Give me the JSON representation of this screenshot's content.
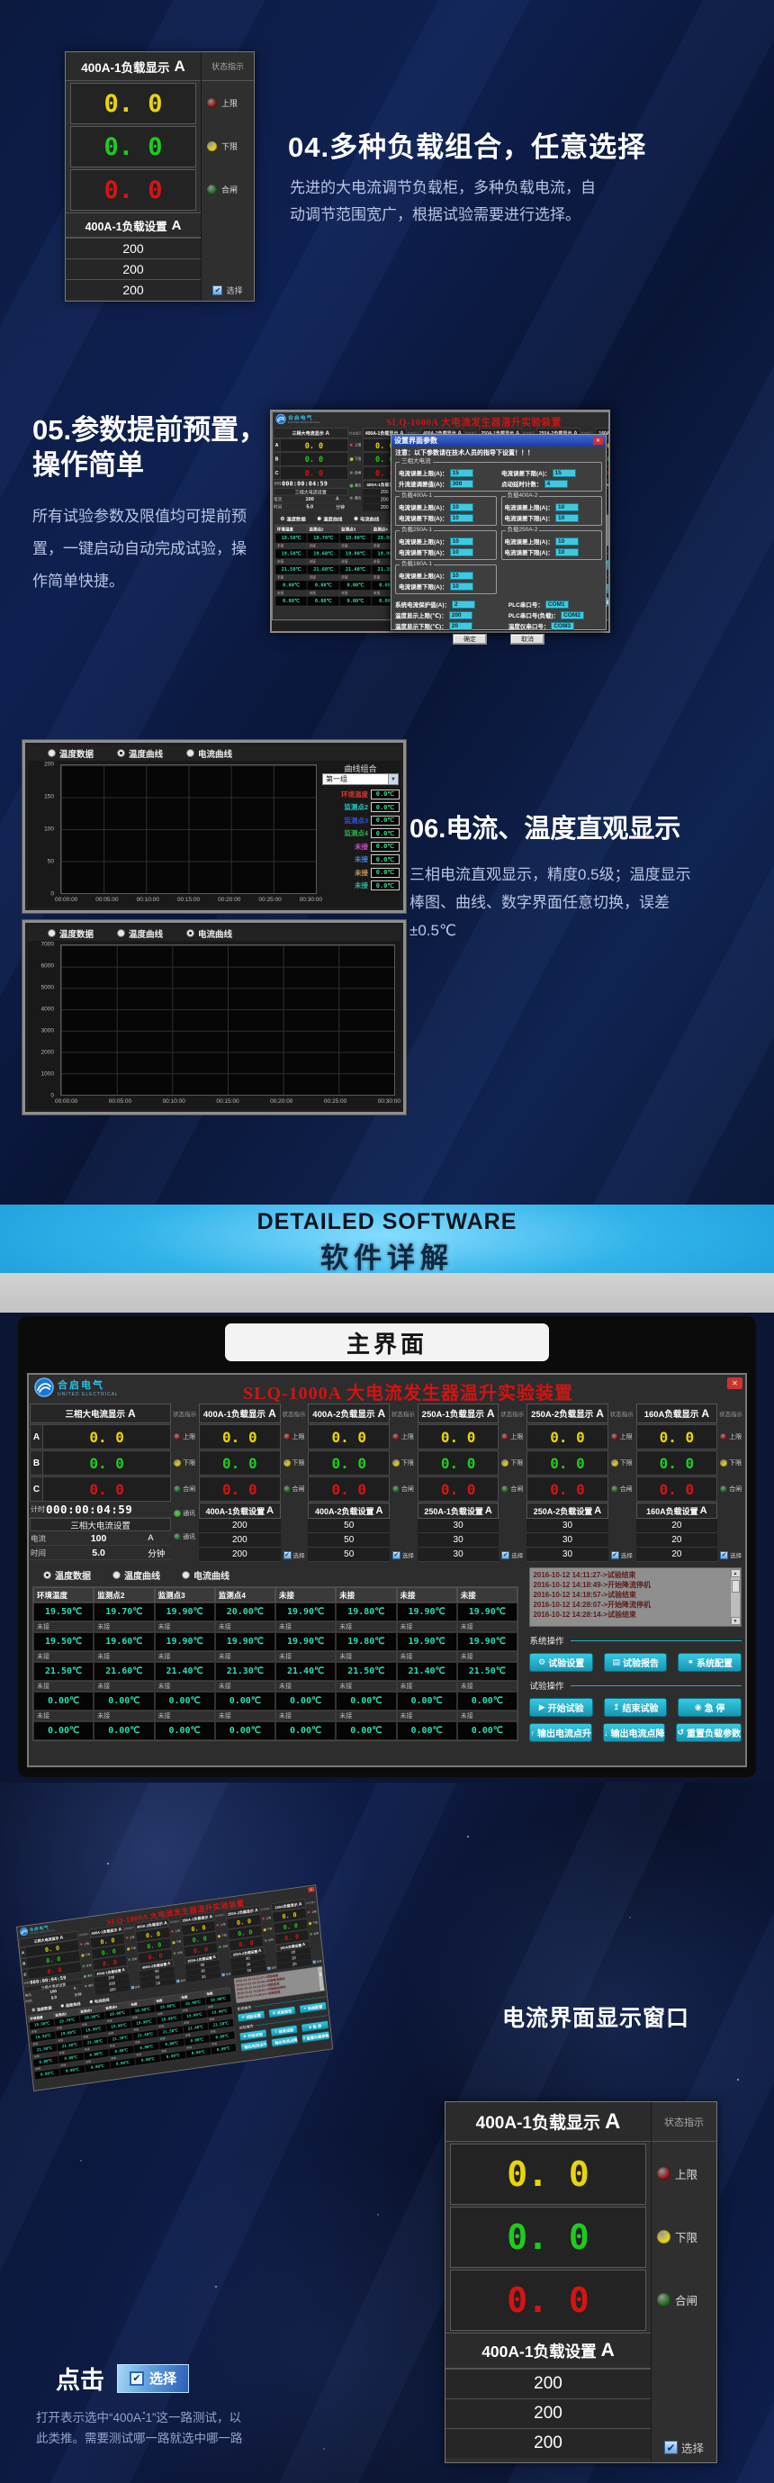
{
  "colors": {
    "phase_colors": [
      "#e8d50a",
      "#1ecb1e",
      "#d41414"
    ],
    "accent_teal": "#1fb0c0",
    "band_blue": "#29abe2",
    "button_cyan": "#24b6cf",
    "title_red": "#cf1414",
    "temp_value": "#2bdcb4"
  },
  "load_panel": {
    "title": "400A-1负载显示",
    "unit": "A",
    "status_title": "状态指示",
    "phases": [
      {
        "value": "0. 0",
        "color": "#e8d50a"
      },
      {
        "value": "0. 0",
        "color": "#1ecb1e"
      },
      {
        "value": "0. 0",
        "color": "#d41414"
      }
    ],
    "indicators": [
      {
        "label": "上限",
        "color": "#8b1212"
      },
      {
        "label": "下限",
        "color": "#f2da12"
      },
      {
        "label": "合闸",
        "color": "#1f6b1f"
      }
    ],
    "settings_title": "400A-1负载设置",
    "settings_unit": "A",
    "settings": [
      "200",
      "200",
      "200"
    ],
    "select_label": "选择"
  },
  "sections": {
    "s04": {
      "heading": "04.多种负载组合，任意选择",
      "body": [
        "先进的大电流调节负载柜，多种负载电流，自",
        "动调节范围宽广，根据试验需要进行选择。"
      ]
    },
    "s05": {
      "heading_l1": "05.参数提前预置，",
      "heading_l2": "操作简单",
      "body": [
        "所有试验参数及限值均可提前预",
        "置，一键启动自动完成试验，操",
        "作简单快捷。"
      ]
    },
    "s06": {
      "heading": "06.电流、温度直观显示",
      "body": [
        "三相电流直观显示，精度0.5级；温度显示",
        "棒图、曲线、数字界面任意切换，误差",
        "±0.5℃"
      ]
    }
  },
  "band": {
    "title_en": "DETAILED SOFTWARE",
    "title_zh": "软件详解"
  },
  "main_section_title": "主界面",
  "main_ui": {
    "logo_text": "合启电气",
    "logo_sub": "UNITED ELECTRICAL",
    "window_title": "SLQ-1000A 大电流发生器温升实验装置",
    "close_glyph": "✕",
    "status_title": "状态指示",
    "select_label": "选择",
    "master": {
      "title": "三相大电流显示",
      "unit": "A",
      "phases": [
        {
          "label": "A",
          "value": "0. 0",
          "color": "#e8d50a"
        },
        {
          "label": "B",
          "value": "0. 0",
          "color": "#1ecb1e"
        },
        {
          "label": "C",
          "value": "0. 0",
          "color": "#d41414"
        }
      ],
      "timer_label": "计时",
      "timer": "000:00:04:59",
      "set_title": "三相大电流设置",
      "kv": [
        {
          "label": "电流",
          "value": "100",
          "unit": "A"
        },
        {
          "label": "时间",
          "value": "5.0",
          "unit": "分钟"
        }
      ],
      "indicators": [
        {
          "label": "上限",
          "color": "#8b1212"
        },
        {
          "label": "下限",
          "color": "#f2da12"
        },
        {
          "label": "合闸",
          "color": "#1f6b1f"
        },
        {
          "label": "通讯",
          "color": "#2ecc2e"
        },
        {
          "label": "通讯",
          "color": "#1f6b1f"
        }
      ]
    },
    "channels": [
      {
        "title": "400A-1负载显示",
        "unit": "A",
        "values": [
          "0. 0",
          "0. 0",
          "0. 0"
        ],
        "set_title": "400A-1负载设置",
        "set_unit": "A",
        "settings": [
          "200",
          "200",
          "200"
        ],
        "indicators": [
          {
            "label": "上限",
            "color": "#8b1212"
          },
          {
            "label": "下限",
            "color": "#f2da12"
          },
          {
            "label": "合闸",
            "color": "#1f6b1f"
          }
        ]
      },
      {
        "title": "400A-2负载显示",
        "unit": "A",
        "values": [
          "0. 0",
          "0. 0",
          "0. 0"
        ],
        "set_title": "400A-2负载设置",
        "set_unit": "A",
        "settings": [
          "50",
          "50",
          "50"
        ],
        "indicators": [
          {
            "label": "上限",
            "color": "#8b1212"
          },
          {
            "label": "下限",
            "color": "#f2da12"
          },
          {
            "label": "合闸",
            "color": "#1f6b1f"
          }
        ]
      },
      {
        "title": "250A-1负载显示",
        "unit": "A",
        "values": [
          "0. 0",
          "0. 0",
          "0. 0"
        ],
        "set_title": "250A-1负载设置",
        "set_unit": "A",
        "settings": [
          "30",
          "30",
          "30"
        ],
        "indicators": [
          {
            "label": "上限",
            "color": "#8b1212"
          },
          {
            "label": "下限",
            "color": "#f2da12"
          },
          {
            "label": "合闸",
            "color": "#1f6b1f"
          }
        ]
      },
      {
        "title": "250A-2负载显示",
        "unit": "A",
        "values": [
          "0. 0",
          "0. 0",
          "0. 0"
        ],
        "set_title": "250A-2负载设置",
        "set_unit": "A",
        "settings": [
          "30",
          "30",
          "30"
        ],
        "indicators": [
          {
            "label": "上限",
            "color": "#8b1212"
          },
          {
            "label": "下限",
            "color": "#f2da12"
          },
          {
            "label": "合闸",
            "color": "#1f6b1f"
          }
        ]
      },
      {
        "title": "160A负载显示",
        "unit": "A",
        "values": [
          "0. 0",
          "0. 0",
          "0. 0"
        ],
        "set_title": "160A负载设置",
        "set_unit": "A",
        "settings": [
          "20",
          "20",
          "20"
        ],
        "indicators": [
          {
            "label": "上限",
            "color": "#8b1212"
          },
          {
            "label": "下限",
            "color": "#f2da12"
          },
          {
            "label": "合闸",
            "color": "#1f6b1f"
          }
        ]
      }
    ],
    "tabs": [
      {
        "label": "温度数据",
        "selected": true
      },
      {
        "label": "温度曲线",
        "selected": false
      },
      {
        "label": "电流曲线",
        "selected": false
      }
    ],
    "temp_table": {
      "headers": [
        "环境温度",
        "监测点2",
        "监测点3",
        "监测点4",
        "未接",
        "未接",
        "未接",
        "未接"
      ],
      "sub_label": "未接",
      "rows": [
        [
          "19.50℃",
          "19.70℃",
          "19.90℃",
          "20.00℃",
          "19.90℃",
          "19.80℃",
          "19.90℃",
          "19.90℃"
        ],
        [
          "19.50℃",
          "19.60℃",
          "19.90℃",
          "19.90℃",
          "19.90℃",
          "19.80℃",
          "19.90℃",
          "19.90℃"
        ],
        [
          "21.50℃",
          "21.60℃",
          "21.40℃",
          "21.30℃",
          "21.40℃",
          "21.50℃",
          "21.40℃",
          "21.50℃"
        ],
        [
          "0.00℃",
          "0.00℃",
          "0.00℃",
          "0.00℃",
          "0.00℃",
          "0.00℃",
          "0.00℃",
          "0.00℃"
        ],
        [
          "0.00℃",
          "0.00℃",
          "0.00℃",
          "0.00℃",
          "0.00℃",
          "0.00℃",
          "0.00℃",
          "0.00℃"
        ]
      ]
    },
    "log_entries": [
      "2016-10-12 14:11:27->试验结束",
      "2016-10-12 14:18:49->开始降流停机",
      "2016-10-12 14:18:57->试验结束",
      "2016-10-12 14:28:07->开始降流停机",
      "2016-10-12 14:28:14->试验结束"
    ],
    "ops": {
      "sys_label": "系统操作",
      "test_label": "试验操作",
      "sys_buttons": [
        {
          "icon": "⚙",
          "label": "试验设置",
          "name": "test-settings-button"
        },
        {
          "icon": "▤",
          "label": "试验报告",
          "name": "test-report-button"
        },
        {
          "icon": "✶",
          "label": "系统配置",
          "name": "system-config-button"
        }
      ],
      "test_rows": [
        [
          {
            "icon": "▶",
            "label": "开始试验",
            "name": "start-test-button"
          },
          {
            "icon": "↥",
            "label": "结束试验",
            "name": "stop-test-button"
          },
          {
            "icon": "◉",
            "label": "急 停",
            "name": "emergency-stop-button"
          }
        ],
        [
          {
            "icon": "↑",
            "label": "输出电流点升",
            "name": "current-step-up-button"
          },
          {
            "icon": "↓",
            "label": "输出电流点降",
            "name": "current-step-down-button"
          },
          {
            "icon": "↺",
            "label": "重置负载参数",
            "name": "reset-load-params-button"
          }
        ]
      ]
    }
  },
  "dialog": {
    "title": "设置界面参数",
    "close_glyph": "✕",
    "notice": "注意：以下参数请在技术人员的指导下设置！！！",
    "groups": [
      {
        "name": "三相大电流",
        "fields": [
          {
            "label": "电流误差上限(A)：",
            "value": "15"
          },
          {
            "label": "电流误差下限(A)：",
            "value": "15"
          },
          {
            "label": "升流速调差值(A)：",
            "value": "300"
          },
          {
            "label": "点动延时计数：",
            "value": "4"
          }
        ]
      },
      {
        "name": "负载400A-1",
        "fields": [
          {
            "label": "电流误差上限(A)：",
            "value": "10"
          },
          {
            "label": "电流误差下限(A)：",
            "value": "10"
          }
        ]
      },
      {
        "name": "负载400A-2",
        "fields": [
          {
            "label": "电流误差上限(A)：",
            "value": "10"
          },
          {
            "label": "电流误差下限(A)：",
            "value": "10"
          }
        ]
      },
      {
        "name": "负载250A-1",
        "fields": [
          {
            "label": "电流误差上限(A)：",
            "value": "10"
          },
          {
            "label": "电流误差下限(A)：",
            "value": "10"
          }
        ]
      },
      {
        "name": "负载250A-2",
        "fields": [
          {
            "label": "电流误差上限(A)：",
            "value": "10"
          },
          {
            "label": "电流误差下限(A)：",
            "value": "10"
          }
        ]
      },
      {
        "name": "负载160A-1",
        "fields": [
          {
            "label": "电流误差上限(A)：",
            "value": "10"
          },
          {
            "label": "电流误差下限(A)：",
            "value": "10"
          }
        ]
      }
    ],
    "bottom_fields": [
      {
        "label": "系统电流保护值(A)：",
        "value": "2"
      },
      {
        "label": "PLC串口号：",
        "value": "COM1"
      },
      {
        "label": "温度显示上限(℃)：",
        "value": "200"
      },
      {
        "label": "PLC串口号(负载)：",
        "value": "COM2"
      },
      {
        "label": "温度显示下限(℃)：",
        "value": "20"
      },
      {
        "label": "温度仪串口号：",
        "value": "COM3"
      }
    ],
    "buttons": [
      "确定",
      "取消"
    ]
  },
  "chart_data": [
    {
      "type": "line",
      "title": "温度曲线",
      "tabs": [
        "温度数据",
        "温度曲线",
        "电流曲线"
      ],
      "selected_tab": 1,
      "xlabel": "",
      "ylabel": "",
      "ylim": [
        0,
        200
      ],
      "yticks": [
        0,
        50,
        100,
        150,
        200
      ],
      "xticks": [
        "00:00:00",
        "00:05:00",
        "00:10:00",
        "00:15:00",
        "00:20:00",
        "00:25:00",
        "00:30:00"
      ],
      "grid": true,
      "series": [],
      "legend": {
        "title": "曲线组合",
        "dropdown": "第一组",
        "items": [
          {
            "label": "环境温度",
            "color": "#e03232",
            "value": "0.0℃"
          },
          {
            "label": "监测点2",
            "color": "#27c8c8",
            "value": "0.0℃"
          },
          {
            "label": "监测点3",
            "color": "#3050e0",
            "value": "0.0℃"
          },
          {
            "label": "监测点4",
            "color": "#2fae4e",
            "value": "0.0℃"
          },
          {
            "label": "未接",
            "color": "#c44fc4",
            "value": "0.0℃"
          },
          {
            "label": "未接",
            "color": "#4f7fd4",
            "value": "0.0℃"
          },
          {
            "label": "未接",
            "color": "#c49a5a",
            "value": "0.0℃"
          },
          {
            "label": "未接",
            "color": "#35b3a0",
            "value": "0.0℃"
          }
        ]
      }
    },
    {
      "type": "line",
      "title": "电流曲线",
      "tabs": [
        "温度数据",
        "温度曲线",
        "电流曲线"
      ],
      "selected_tab": 2,
      "xlabel": "",
      "ylabel": "",
      "ylim": [
        0,
        7000
      ],
      "yticks": [
        0,
        1000,
        2000,
        3000,
        4000,
        5000,
        6000,
        7000
      ],
      "xticks": [
        "00:00:00",
        "00:05:00",
        "00:10:00",
        "00:15:00",
        "00:20:00",
        "00:25:00",
        "00:30:00"
      ],
      "grid": true,
      "series": []
    }
  ],
  "bottom": {
    "caption": "电流界面显示窗口",
    "click_label": "点击",
    "select_badge": "选择",
    "note": [
      "打开表示选中“400A-1”这一路测试，以",
      "此类推。需要测试哪一路就选中哪一路"
    ]
  }
}
